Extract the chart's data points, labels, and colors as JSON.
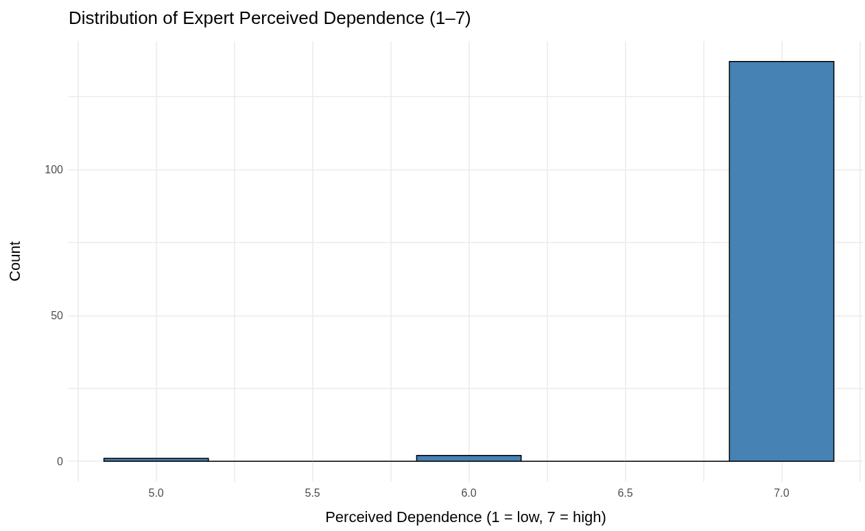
{
  "chart_data": {
    "type": "histogram",
    "title": "Distribution of Expert Perceived Dependence (1–7)",
    "xlabel": "Perceived Dependence (1 = low, 7 = high)",
    "ylabel": "Count",
    "bins": [
      4.833,
      5.167,
      5.5,
      5.833,
      6.167,
      6.5,
      6.833,
      7.167
    ],
    "values": [
      1,
      0,
      0,
      2,
      0,
      0,
      137
    ],
    "colors": [
      "#4682b4",
      "#000000",
      "#000000",
      "#4682b4",
      "#000000",
      "#000000",
      "#4682b4"
    ],
    "xlim": [
      4.72,
      7.26
    ],
    "xticks": [
      {
        "value": 4.75,
        "label": null
      },
      {
        "value": 5,
        "label": "5.0"
      },
      {
        "value": 5.25,
        "label": null
      },
      {
        "value": 5.5,
        "label": "5.5"
      },
      {
        "value": 5.75,
        "label": null
      },
      {
        "value": 6,
        "label": "6.0"
      },
      {
        "value": 6.25,
        "label": null
      },
      {
        "value": 6.5,
        "label": "6.5"
      },
      {
        "value": 6.75,
        "label": null
      },
      {
        "value": 7,
        "label": "7.0"
      },
      {
        "value": 7.25,
        "label": null
      }
    ],
    "ylim": [
      -7,
      144
    ],
    "yticks": [
      0,
      {
        "value": 25,
        "label": null
      },
      50,
      {
        "value": 75,
        "label": null
      },
      100,
      {
        "value": 125,
        "label": null
      }
    ],
    "grid": true
  }
}
